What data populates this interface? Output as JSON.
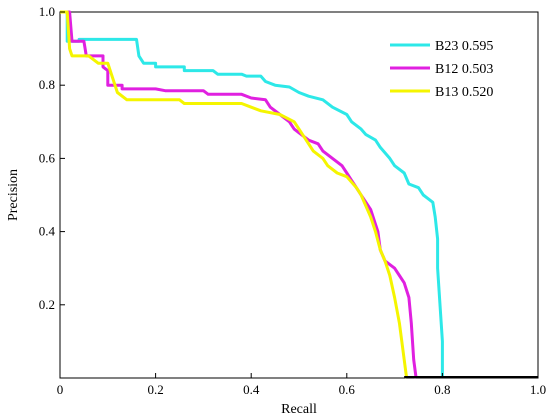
{
  "chart_data": {
    "type": "line",
    "title": "",
    "xlabel": "Recall",
    "ylabel": "Precision",
    "xlim": [
      0,
      1
    ],
    "ylim": [
      0,
      1
    ],
    "xticks": [
      "0",
      "0.2",
      "0.4",
      "0.6",
      "0.8",
      "1.0"
    ],
    "yticks": [
      "0.2",
      "0.4",
      "0.6",
      "0.8",
      "1.0"
    ],
    "grid": false,
    "legend_position": "top-right",
    "series": [
      {
        "name": "B23 0.595",
        "color": "#2de8e8",
        "points": [
          [
            0.0,
            1.0
          ],
          [
            0.015,
            1.0
          ],
          [
            0.015,
            0.92
          ],
          [
            0.04,
            0.92
          ],
          [
            0.04,
            0.925
          ],
          [
            0.16,
            0.925
          ],
          [
            0.165,
            0.88
          ],
          [
            0.175,
            0.86
          ],
          [
            0.2,
            0.86
          ],
          [
            0.2,
            0.85
          ],
          [
            0.26,
            0.85
          ],
          [
            0.26,
            0.84
          ],
          [
            0.32,
            0.84
          ],
          [
            0.33,
            0.83
          ],
          [
            0.38,
            0.83
          ],
          [
            0.39,
            0.825
          ],
          [
            0.42,
            0.825
          ],
          [
            0.43,
            0.81
          ],
          [
            0.45,
            0.8
          ],
          [
            0.48,
            0.795
          ],
          [
            0.5,
            0.78
          ],
          [
            0.52,
            0.77
          ],
          [
            0.55,
            0.76
          ],
          [
            0.57,
            0.74
          ],
          [
            0.6,
            0.72
          ],
          [
            0.61,
            0.7
          ],
          [
            0.63,
            0.68
          ],
          [
            0.64,
            0.665
          ],
          [
            0.66,
            0.65
          ],
          [
            0.67,
            0.63
          ],
          [
            0.69,
            0.6
          ],
          [
            0.7,
            0.58
          ],
          [
            0.72,
            0.56
          ],
          [
            0.73,
            0.53
          ],
          [
            0.75,
            0.52
          ],
          [
            0.76,
            0.5
          ],
          [
            0.77,
            0.49
          ],
          [
            0.78,
            0.48
          ],
          [
            0.785,
            0.44
          ],
          [
            0.79,
            0.38
          ],
          [
            0.79,
            0.3
          ],
          [
            0.795,
            0.2
          ],
          [
            0.8,
            0.1
          ],
          [
            0.8,
            0.0
          ]
        ]
      },
      {
        "name": "B12 0.503",
        "color": "#e020e0",
        "points": [
          [
            0.0,
            1.0
          ],
          [
            0.02,
            1.0
          ],
          [
            0.025,
            0.92
          ],
          [
            0.05,
            0.92
          ],
          [
            0.055,
            0.88
          ],
          [
            0.09,
            0.88
          ],
          [
            0.09,
            0.85
          ],
          [
            0.1,
            0.84
          ],
          [
            0.1,
            0.8
          ],
          [
            0.13,
            0.8
          ],
          [
            0.13,
            0.79
          ],
          [
            0.2,
            0.79
          ],
          [
            0.22,
            0.785
          ],
          [
            0.3,
            0.785
          ],
          [
            0.31,
            0.775
          ],
          [
            0.38,
            0.775
          ],
          [
            0.4,
            0.765
          ],
          [
            0.43,
            0.76
          ],
          [
            0.44,
            0.74
          ],
          [
            0.46,
            0.72
          ],
          [
            0.48,
            0.7
          ],
          [
            0.49,
            0.68
          ],
          [
            0.5,
            0.67
          ],
          [
            0.52,
            0.65
          ],
          [
            0.54,
            0.64
          ],
          [
            0.55,
            0.62
          ],
          [
            0.57,
            0.6
          ],
          [
            0.59,
            0.58
          ],
          [
            0.6,
            0.56
          ],
          [
            0.61,
            0.54
          ],
          [
            0.62,
            0.52
          ],
          [
            0.63,
            0.5
          ],
          [
            0.64,
            0.48
          ],
          [
            0.65,
            0.46
          ],
          [
            0.66,
            0.42
          ],
          [
            0.665,
            0.4
          ],
          [
            0.67,
            0.35
          ],
          [
            0.68,
            0.32
          ],
          [
            0.7,
            0.3
          ],
          [
            0.71,
            0.28
          ],
          [
            0.72,
            0.26
          ],
          [
            0.73,
            0.22
          ],
          [
            0.735,
            0.15
          ],
          [
            0.74,
            0.05
          ],
          [
            0.745,
            0.0
          ]
        ]
      },
      {
        "name": "B13 0.520",
        "color": "#f5f500",
        "points": [
          [
            0.0,
            1.0
          ],
          [
            0.015,
            1.0
          ],
          [
            0.02,
            0.9
          ],
          [
            0.025,
            0.88
          ],
          [
            0.06,
            0.88
          ],
          [
            0.08,
            0.86
          ],
          [
            0.1,
            0.86
          ],
          [
            0.12,
            0.78
          ],
          [
            0.14,
            0.76
          ],
          [
            0.25,
            0.76
          ],
          [
            0.26,
            0.75
          ],
          [
            0.38,
            0.75
          ],
          [
            0.4,
            0.74
          ],
          [
            0.42,
            0.73
          ],
          [
            0.46,
            0.72
          ],
          [
            0.49,
            0.7
          ],
          [
            0.5,
            0.68
          ],
          [
            0.51,
            0.66
          ],
          [
            0.52,
            0.64
          ],
          [
            0.53,
            0.62
          ],
          [
            0.55,
            0.6
          ],
          [
            0.56,
            0.58
          ],
          [
            0.58,
            0.56
          ],
          [
            0.6,
            0.55
          ],
          [
            0.62,
            0.52
          ],
          [
            0.63,
            0.5
          ],
          [
            0.64,
            0.47
          ],
          [
            0.65,
            0.44
          ],
          [
            0.66,
            0.4
          ],
          [
            0.67,
            0.35
          ],
          [
            0.68,
            0.32
          ],
          [
            0.69,
            0.28
          ],
          [
            0.7,
            0.22
          ],
          [
            0.71,
            0.15
          ],
          [
            0.72,
            0.05
          ],
          [
            0.725,
            0.0
          ]
        ]
      }
    ]
  }
}
